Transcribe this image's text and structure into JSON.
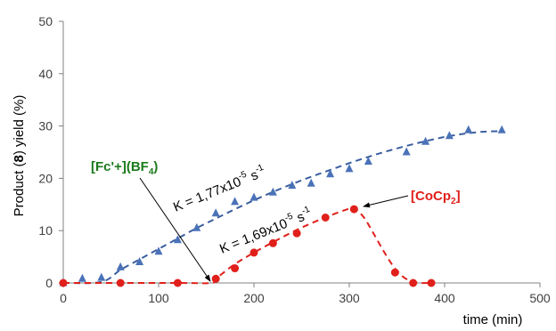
{
  "chart_data": {
    "type": "scatter",
    "xlabel": "time (min)",
    "ylabel_parts": [
      "Product (",
      "8",
      ") yield (%)"
    ],
    "xlim": [
      0,
      500
    ],
    "ylim": [
      0,
      50
    ],
    "xticks": [
      0,
      100,
      200,
      300,
      400,
      500
    ],
    "yticks": [
      0,
      10,
      20,
      30,
      40,
      50
    ],
    "grid": false,
    "series": [
      {
        "marker": "triangle",
        "color": "#4a72b8",
        "x": [
          0,
          20,
          40,
          60,
          80,
          100,
          120,
          140,
          160,
          180,
          200,
          220,
          240,
          260,
          280,
          300,
          320,
          360,
          380,
          405,
          425,
          460
        ],
        "y": [
          0,
          0.8,
          1,
          3,
          4,
          6,
          8.2,
          10.5,
          13.3,
          15.5,
          16.3,
          17.3,
          18.6,
          19,
          20.8,
          21.8,
          23.2,
          25,
          27,
          28.1,
          29.2,
          29.2
        ],
        "fit": {
          "color": "#3a5f9f",
          "x": [
            0,
            40,
            60,
            80,
            100,
            120,
            140,
            160,
            180,
            200,
            220,
            240,
            260,
            280,
            300,
            320,
            340,
            360,
            380,
            400,
            420,
            440,
            460
          ],
          "y": [
            0,
            0.2,
            2.5,
            4.5,
            6.5,
            8.5,
            10.5,
            12.3,
            14.1,
            15.8,
            17.4,
            18.9,
            20.3,
            21.6,
            22.9,
            24.1,
            25.2,
            26.2,
            27.1,
            27.9,
            28.5,
            28.9,
            29.0
          ]
        },
        "label": "[Fc'+](BF4)",
        "annotation": "K = 1,77x10-5 s-1"
      },
      {
        "marker": "circle",
        "color": "#e0201b",
        "x": [
          0,
          60,
          120,
          160,
          180,
          200,
          220,
          245,
          275,
          305,
          348,
          367,
          386
        ],
        "y": [
          0,
          0,
          0,
          0.8,
          2.8,
          5.8,
          7.6,
          9.5,
          12.5,
          14.1,
          2,
          0,
          0
        ],
        "fit": {
          "color": "#e0201b",
          "x": [
            0,
            60,
            120,
            155,
            160,
            180,
            200,
            220,
            240,
            260,
            280,
            300,
            305,
            315,
            325,
            335,
            345,
            355,
            365,
            375,
            385
          ],
          "y": [
            0,
            0,
            0,
            0,
            0.8,
            3.6,
            5.8,
            7.8,
            9.7,
            11.4,
            12.9,
            14.2,
            14.3,
            12.6,
            9.6,
            6.4,
            3.5,
            1.4,
            0.3,
            0,
            0
          ]
        },
        "label": "[CoCp2]",
        "annotation": "K = 1,69x10-5 s-1"
      }
    ]
  },
  "text": {
    "fc_label_parts": [
      "[Fc'+](BF",
      "4",
      ")"
    ],
    "cocp_label_parts": [
      "[CoCp",
      "2",
      "]"
    ],
    "k1_parts": [
      "K = 1,77x10",
      "-5",
      " s",
      "-1"
    ],
    "k2_parts": [
      "K = 1,69x10",
      "-5",
      " s",
      "-1"
    ]
  }
}
